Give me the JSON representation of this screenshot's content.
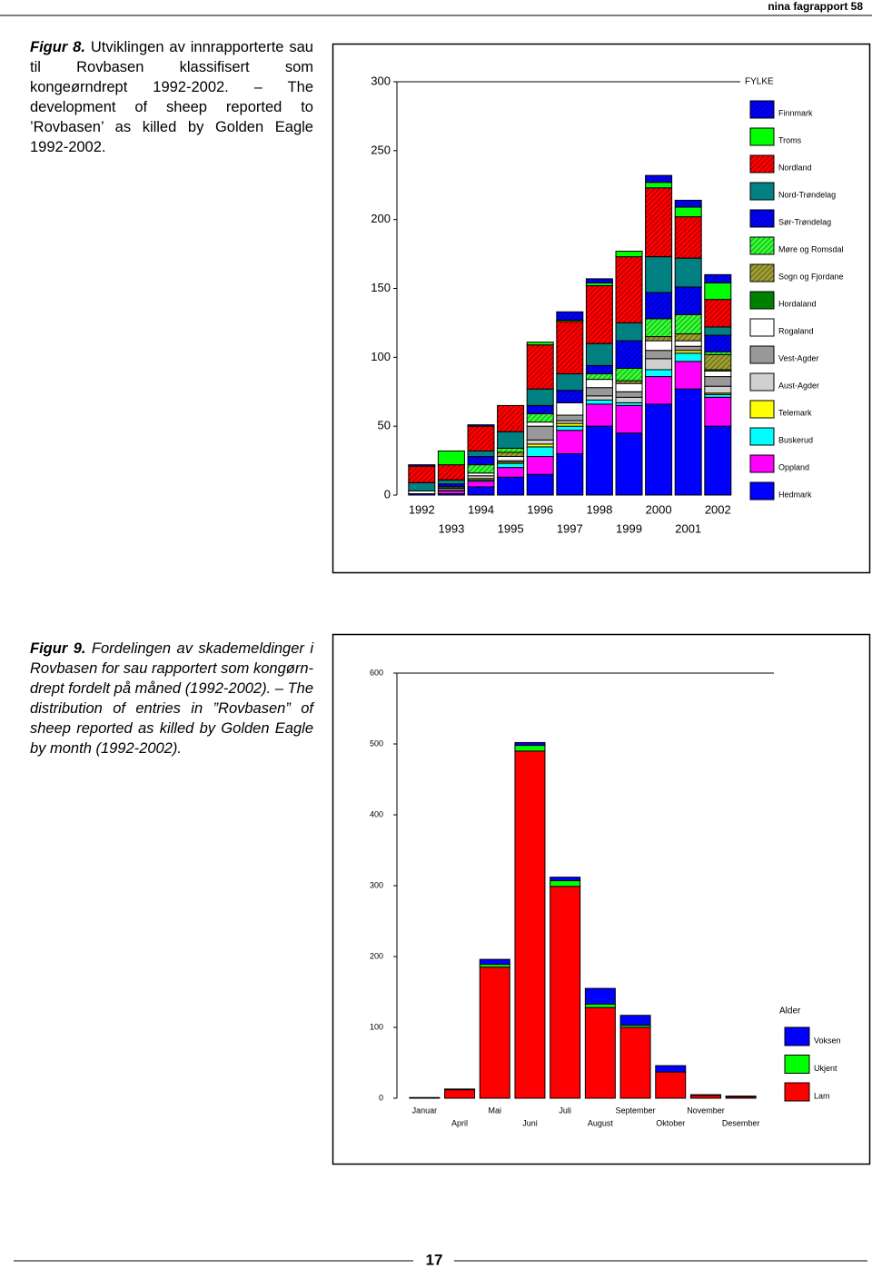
{
  "header": {
    "text": "nina fagrapport 58"
  },
  "figures": [
    {
      "label": "Figur 8.",
      "caption": "Utviklingen av innrapporterte sau til Rovbasen klassifisert som kongeørndrept 1992-2002. – The development of sheep reported to ’Rovbasen’ as killed by Golden Eagle 1992-2002."
    },
    {
      "label": "Figur 9.",
      "caption": "Fordelingen av skademeldinger i Rovbasen for sau rapportert som kongørn-drept fordelt på måned (1992-2002). – The distribution of entries in ”Rovbasen” of sheep reported as killed by Golden Eagle by month (1992-2002)."
    }
  ],
  "chart_data": [
    {
      "type": "stacked_bar",
      "legend_title": "FYLKE",
      "categories": [
        "1992",
        "1993",
        "1994",
        "1995",
        "1996",
        "1997",
        "1998",
        "1999",
        "2000",
        "2001",
        "2002"
      ],
      "ylim": [
        0,
        300
      ],
      "yticks": [
        0,
        50,
        100,
        150,
        200,
        250,
        300
      ],
      "series": [
        {
          "name": "Hedmark",
          "color": "#0000ff",
          "values": [
            1,
            1,
            6,
            13,
            15,
            30,
            50,
            45,
            66,
            77,
            50
          ]
        },
        {
          "name": "Oppland",
          "color": "#ff00ff",
          "values": [
            0,
            2,
            4,
            7,
            13,
            17,
            16,
            20,
            20,
            20,
            21
          ]
        },
        {
          "name": "Buskerud",
          "color": "#00ffff",
          "values": [
            0,
            0,
            1,
            3,
            7,
            3,
            3,
            2,
            5,
            6,
            2
          ]
        },
        {
          "name": "Telemark",
          "color": "#ffff00",
          "values": [
            0,
            0,
            1,
            1,
            2,
            2,
            0,
            0,
            0,
            2,
            1
          ]
        },
        {
          "name": "Aust-Agder",
          "color": "#d0d0d0",
          "values": [
            0,
            1,
            2,
            1,
            3,
            2,
            3,
            4,
            8,
            0,
            5
          ]
        },
        {
          "name": "Vest-Agder",
          "color": "#999999",
          "values": [
            0,
            0,
            0,
            0,
            10,
            4,
            6,
            4,
            6,
            3,
            7
          ]
        },
        {
          "name": "Rogaland",
          "color": "#ffffff",
          "values": [
            2,
            1,
            2,
            3,
            3,
            9,
            6,
            6,
            7,
            4,
            4
          ]
        },
        {
          "name": "Hordaland",
          "color": "#008000",
          "values": [
            0,
            0,
            0,
            0,
            0,
            0,
            0,
            0,
            0,
            0,
            1
          ]
        },
        {
          "name": "Sogn og Fjordane",
          "color": "#a0a030",
          "hatch": true,
          "values": [
            0,
            1,
            0,
            3,
            0,
            0,
            0,
            2,
            3,
            5,
            11
          ]
        },
        {
          "name": "Møre og Romsdal",
          "color": "#33ff33",
          "hatch": true,
          "values": [
            0,
            0,
            6,
            3,
            6,
            0,
            4,
            9,
            13,
            14,
            2
          ]
        },
        {
          "name": "Sør-Trøndelag",
          "color": "#0000ff",
          "hatch": true,
          "values": [
            0,
            2,
            6,
            0,
            6,
            9,
            6,
            20,
            19,
            20,
            12
          ]
        },
        {
          "name": "Nord-Trøndelag",
          "color": "#008080",
          "values": [
            6,
            3,
            4,
            12,
            12,
            12,
            16,
            13,
            26,
            21,
            6
          ]
        },
        {
          "name": "Nordland",
          "color": "#ff0000",
          "hatch": true,
          "values": [
            12,
            11,
            18,
            19,
            32,
            38,
            42,
            48,
            50,
            30,
            20
          ]
        },
        {
          "name": "Troms",
          "color": "#00ff00",
          "values": [
            0,
            10,
            0,
            0,
            2,
            1,
            2,
            4,
            4,
            7,
            12
          ]
        },
        {
          "name": "Finnmark",
          "color": "#0000ff",
          "hatch": true,
          "values": [
            1,
            0,
            1,
            0,
            0,
            6,
            3,
            0,
            5,
            5,
            6
          ]
        }
      ]
    },
    {
      "type": "stacked_bar",
      "legend_title": "Alder",
      "categories": [
        "Januar",
        "April",
        "Mai",
        "Juni",
        "Juli",
        "August",
        "September",
        "Oktober",
        "November",
        "Desember"
      ],
      "ylim": [
        0,
        600
      ],
      "yticks": [
        0,
        100,
        200,
        300,
        400,
        500,
        600
      ],
      "series": [
        {
          "name": "Lam",
          "color": "#ff0000",
          "values": [
            1,
            12,
            185,
            490,
            299,
            128,
            100,
            37,
            4,
            2
          ]
        },
        {
          "name": "Ukjent",
          "color": "#00ff00",
          "values": [
            0,
            0,
            4,
            8,
            8,
            5,
            3,
            0,
            0,
            0
          ]
        },
        {
          "name": "Voksen",
          "color": "#0000ff",
          "values": [
            0,
            1,
            7,
            4,
            5,
            22,
            14,
            9,
            1,
            1
          ]
        }
      ]
    }
  ],
  "page_number": "17"
}
